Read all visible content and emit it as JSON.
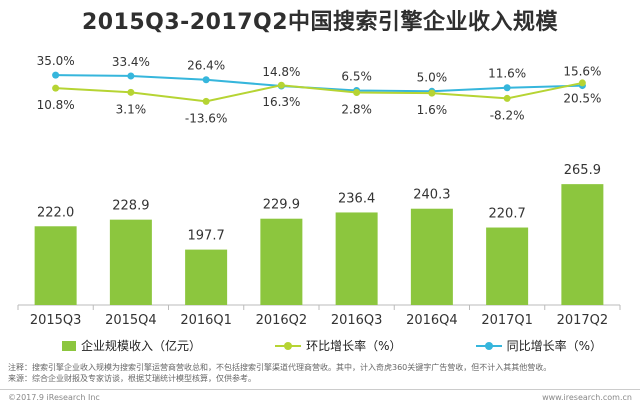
{
  "chart_data": {
    "type": "bar+line",
    "title": "2015Q3-2017Q2中国搜索引擎企业收入规模",
    "categories": [
      "2015Q3",
      "2015Q4",
      "2016Q1",
      "2016Q2",
      "2016Q3",
      "2016Q4",
      "2017Q1",
      "2017Q2"
    ],
    "series": [
      {
        "name": "企业规模收入（亿元）",
        "type": "bar",
        "values": [
          222.0,
          228.9,
          197.7,
          229.9,
          236.4,
          240.3,
          220.7,
          265.9
        ],
        "labels": [
          "222.0",
          "228.9",
          "197.7",
          "229.9",
          "236.4",
          "240.3",
          "220.7",
          "265.9"
        ]
      },
      {
        "name": "环比增长率（%）",
        "type": "line",
        "values": [
          10.8,
          3.1,
          -13.6,
          16.3,
          2.8,
          1.6,
          -8.2,
          20.5
        ],
        "labels": [
          "10.8%",
          "3.1%",
          "-13.6%",
          "16.3%",
          "2.8%",
          "1.6%",
          "-8.2%",
          "20.5%"
        ]
      },
      {
        "name": "同比增长率（%）",
        "type": "line",
        "values": [
          35.0,
          33.4,
          26.4,
          14.8,
          6.5,
          5.0,
          11.6,
          15.6
        ],
        "labels": [
          "35.0%",
          "33.4%",
          "26.4%",
          "14.8%",
          "6.5%",
          "5.0%",
          "11.6%",
          "15.6%"
        ]
      }
    ],
    "grid": false,
    "legend_position": "bottom"
  },
  "colors": {
    "bar": "#8cc63e",
    "mom_line": "#b6d433",
    "yoy_line": "#36b6dc",
    "axis": "#bbbbbb",
    "label": "#333333"
  },
  "legend": {
    "bar_label": "企业规模收入（亿元）",
    "mom_label": "环比增长率（%）",
    "yoy_label": "同比增长率（%）"
  },
  "notes": {
    "line1": "注释：搜索引擎企业收入规模为搜索引擎运营商营收总和，不包括搜索引擎渠道代理商营收。其中，计入奇虎360关键字广告营收，但不计入其其他营收。",
    "line2": "来源：综合企业财报及专家访谈，根据艾瑞统计模型核算，仅供参考。"
  },
  "footer": {
    "copyright": "©2017.9 iResearch Inc",
    "website": "www.iresearch.com.cn"
  }
}
